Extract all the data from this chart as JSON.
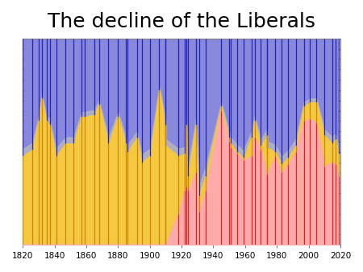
{
  "title": "The decline of the Liberals",
  "title_fontsize": 18,
  "xmin": 1820,
  "xmax": 2020,
  "ymin": 0,
  "ymax": 1.0,
  "background_color": "#ffffff",
  "blue_color": "#8888dd",
  "blue_line_color": "#2222bb",
  "yellow_color": "#f5c842",
  "yellow_line_color": "#cc8800",
  "red_color": "#ffaaaa",
  "red_line_color": "#dd2222",
  "grey_color": "#bbbbbb",
  "years": [
    1820,
    1826,
    1830,
    1832,
    1835,
    1837,
    1841,
    1847,
    1852,
    1857,
    1859,
    1865,
    1868,
    1874,
    1880,
    1885,
    1886,
    1892,
    1895,
    1900,
    1906,
    1910,
    1910,
    1918,
    1922,
    1923,
    1924,
    1929,
    1931,
    1935,
    1945,
    1950,
    1951,
    1955,
    1959,
    1964,
    1966,
    1970,
    1974,
    1974,
    1979,
    1983,
    1987,
    1992,
    1997,
    2001,
    2005,
    2010,
    2015,
    2017,
    2019
  ],
  "conservative": [
    0.57,
    0.54,
    0.4,
    0.29,
    0.4,
    0.42,
    0.57,
    0.51,
    0.51,
    0.38,
    0.38,
    0.37,
    0.32,
    0.51,
    0.38,
    0.51,
    0.55,
    0.48,
    0.6,
    0.57,
    0.25,
    0.42,
    0.52,
    0.57,
    0.56,
    0.42,
    0.67,
    0.42,
    0.76,
    0.67,
    0.33,
    0.48,
    0.51,
    0.55,
    0.58,
    0.48,
    0.4,
    0.52,
    0.47,
    0.53,
    0.55,
    0.61,
    0.58,
    0.52,
    0.33,
    0.31,
    0.31,
    0.47,
    0.51,
    0.49,
    0.56
  ],
  "liberal": [
    0.43,
    0.46,
    0.6,
    0.71,
    0.6,
    0.58,
    0.43,
    0.49,
    0.49,
    0.62,
    0.62,
    0.63,
    0.68,
    0.49,
    0.62,
    0.49,
    0.45,
    0.52,
    0.4,
    0.43,
    0.75,
    0.58,
    0.48,
    0.28,
    0.18,
    0.3,
    0.07,
    0.23,
    0.08,
    0.07,
    0.02,
    0.02,
    0.02,
    0.01,
    0.01,
    0.09,
    0.08,
    0.02,
    0.19,
    0.13,
    0.02,
    0.04,
    0.03,
    0.03,
    0.07,
    0.08,
    0.1,
    0.15,
    0.09,
    0.12,
    0.11
  ],
  "labour": [
    0,
    0,
    0,
    0,
    0,
    0,
    0,
    0,
    0,
    0,
    0,
    0,
    0,
    0,
    0,
    0,
    0,
    0,
    0,
    0,
    0,
    0,
    0,
    0.15,
    0.26,
    0.28,
    0.26,
    0.35,
    0.16,
    0.26,
    0.65,
    0.5,
    0.47,
    0.44,
    0.41,
    0.43,
    0.52,
    0.46,
    0.34,
    0.34,
    0.43,
    0.35,
    0.39,
    0.45,
    0.6,
    0.61,
    0.59,
    0.38,
    0.4,
    0.39,
    0.33
  ],
  "xticks": [
    1820,
    1840,
    1860,
    1880,
    1900,
    1920,
    1940,
    1960,
    1980,
    2000,
    2020
  ]
}
